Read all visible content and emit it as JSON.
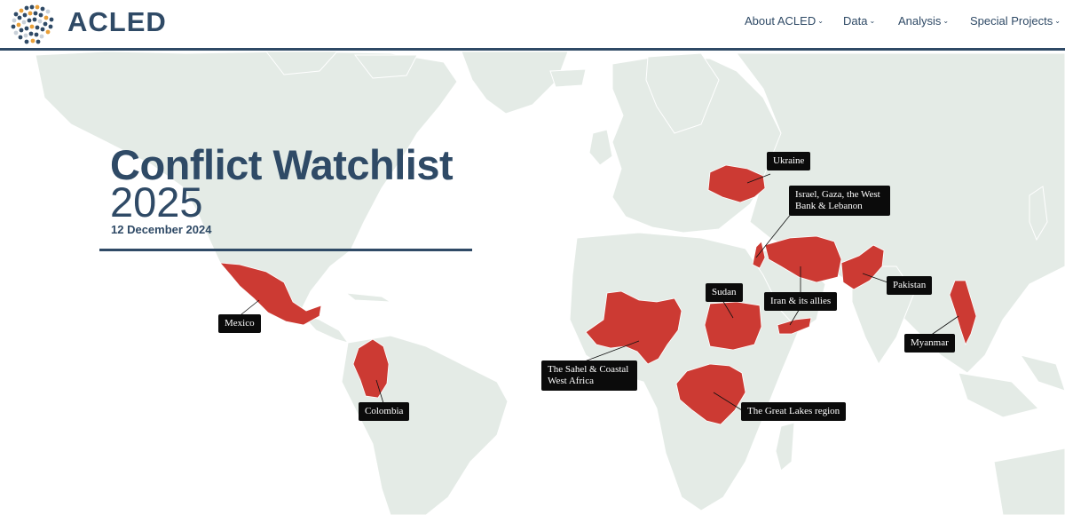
{
  "header": {
    "logo_text": "ACLED",
    "nav": [
      {
        "label": "About ACLED"
      },
      {
        "label": "Data"
      },
      {
        "label": "Analysis"
      },
      {
        "label": "Special Projects"
      }
    ],
    "chevron_icon": "chevron-down-icon"
  },
  "title": {
    "line1": "Conflict Watchlist",
    "line2": "2025",
    "date": "12 December 2024"
  },
  "labels": {
    "ukraine": "Ukraine",
    "israel": "Israel, Gaza, the West Bank & Lebanon",
    "pakistan": "Pakistan",
    "iran": "Iran & its allies",
    "sudan": "Sudan",
    "mexico": "Mexico",
    "colombia": "Colombia",
    "sahel": "The Sahel & Coastal West Africa",
    "great_lakes": "The Great Lakes region",
    "myanmar": "Myanmar"
  },
  "colors": {
    "brand": "#2f4a66",
    "land": "#e4ebe6",
    "highlight": "#cc3a33",
    "label_bg": "#0b0b0b"
  }
}
